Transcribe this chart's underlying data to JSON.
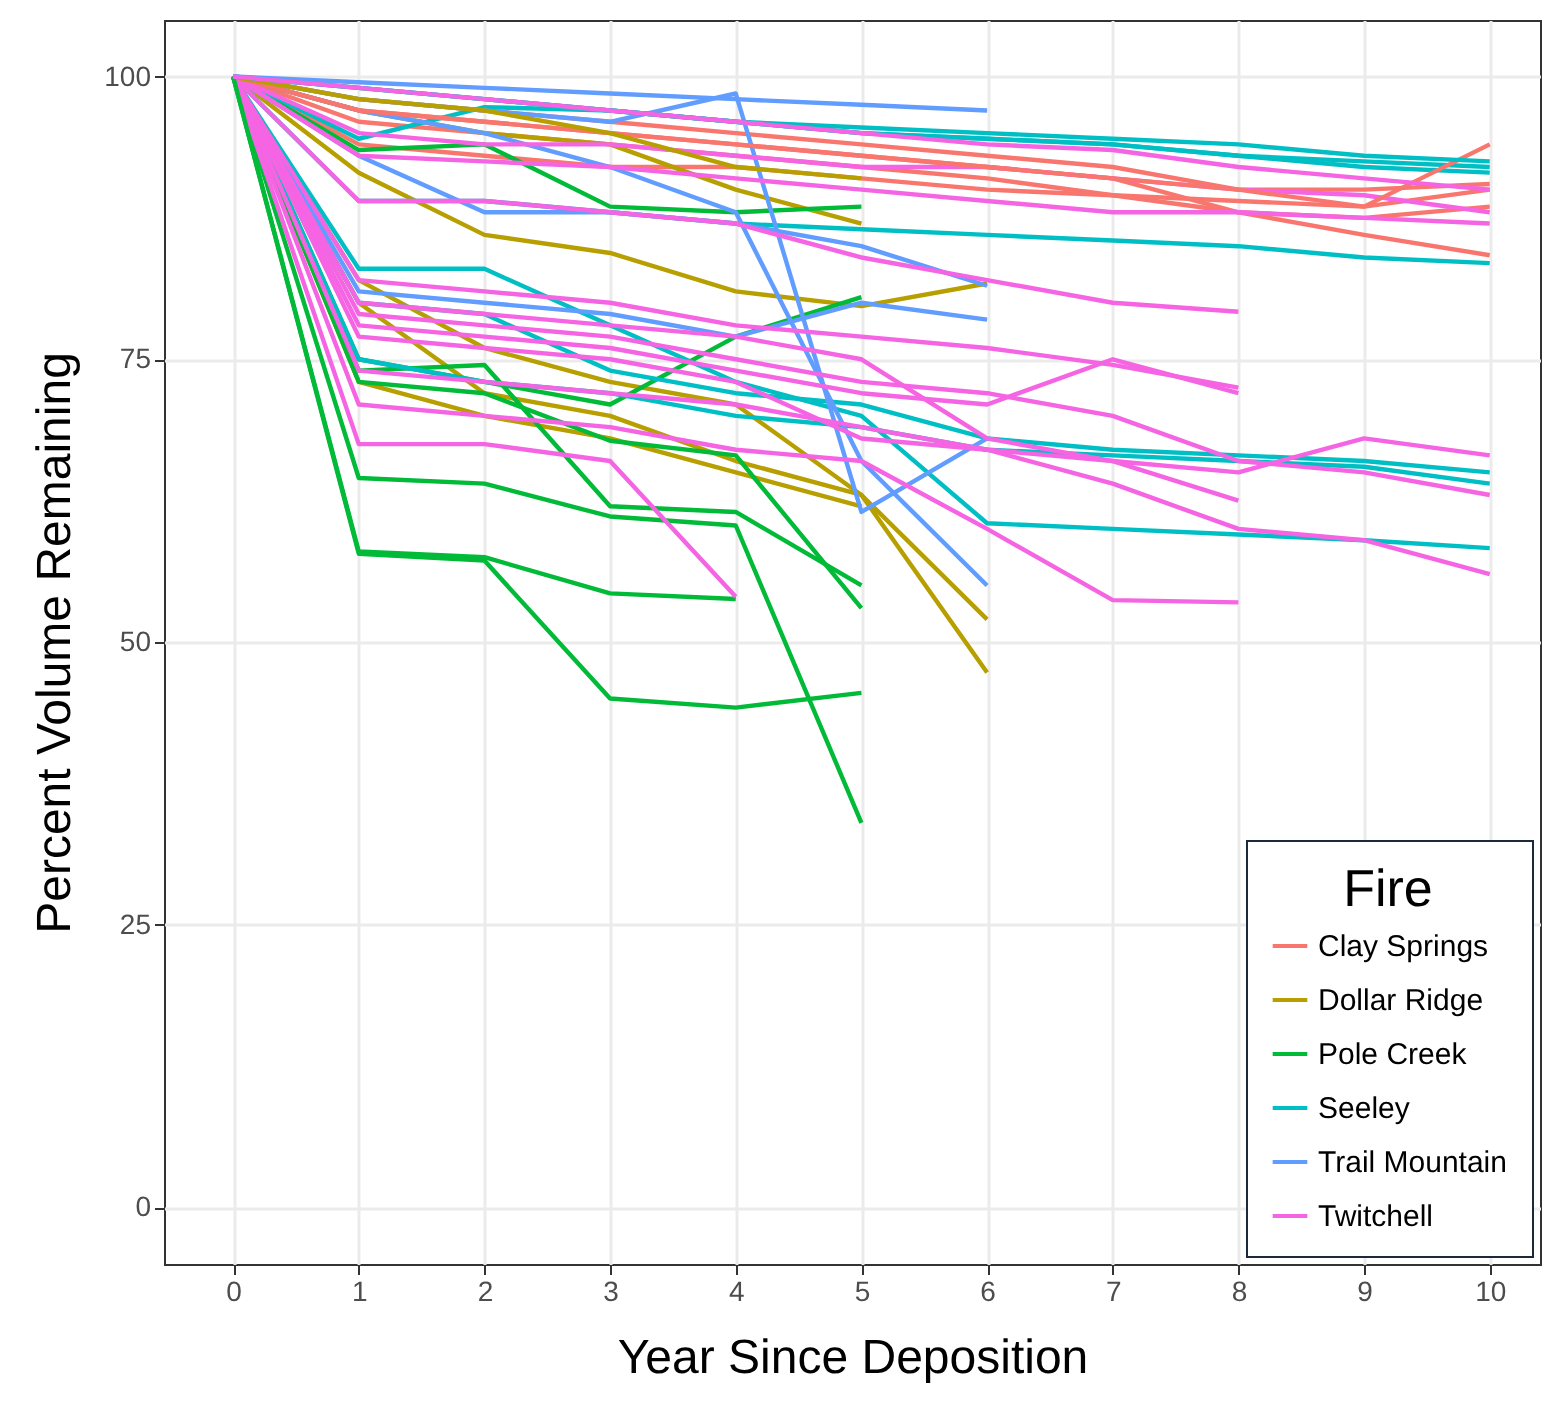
{
  "chart_data": {
    "type": "line",
    "xlabel": "Year Since Deposition",
    "ylabel": "Percent Volume Remaining",
    "legend_title": "Fire",
    "legend": "bottom right",
    "grid": true,
    "line_style": "solid",
    "x": [
      0,
      1,
      2,
      3,
      4,
      5,
      6,
      7,
      8,
      9,
      10
    ],
    "xlim": [
      -0.55,
      10.4
    ],
    "xticks": [
      0,
      1,
      2,
      3,
      4,
      5,
      6,
      7,
      8,
      9,
      10
    ],
    "ylim": [
      -5,
      105
    ],
    "yticks": [
      0,
      25,
      50,
      75,
      100
    ],
    "series": [
      {
        "name": "Clay Springs",
        "color": "#f8766d",
        "values": [
          100,
          97,
          96,
          95,
          94,
          93,
          92,
          91,
          90,
          88.5,
          94
        ]
      },
      {
        "color": "#f8766d",
        "values": [
          100,
          96,
          95,
          94,
          93,
          92,
          91,
          89.5,
          88,
          86,
          84.2
        ]
      },
      {
        "color": "#f8766d",
        "values": [
          100,
          98,
          97,
          96,
          95,
          94,
          93,
          92,
          90,
          90,
          90.5
        ]
      },
      {
        "color": "#f8766d",
        "values": [
          100,
          94,
          93,
          92,
          92,
          91,
          90,
          89.5,
          89,
          88.5,
          90
        ]
      },
      {
        "color": "#f8766d",
        "values": [
          100,
          97,
          96,
          95,
          94,
          93,
          92,
          91,
          88,
          87.5,
          88.5
        ]
      },
      {
        "name": "Dollar Ridge",
        "color": "#b79f00",
        "values": [
          100,
          98,
          97,
          95,
          92,
          91,
          null,
          null,
          null,
          null,
          null
        ]
      },
      {
        "color": "#b79f00",
        "values": [
          100,
          91.5,
          86,
          84.4,
          81,
          79.7,
          81.7,
          null,
          null,
          null,
          null
        ]
      },
      {
        "color": "#b79f00",
        "values": [
          100,
          82,
          76,
          73,
          71,
          63,
          52,
          null,
          null,
          null,
          null
        ]
      },
      {
        "color": "#b79f00",
        "values": [
          100,
          80,
          72,
          70,
          66,
          63,
          47.3,
          null,
          null,
          null,
          null
        ]
      },
      {
        "color": "#b79f00",
        "values": [
          100,
          73,
          70,
          68,
          65,
          62,
          null,
          null,
          null,
          null,
          null
        ]
      },
      {
        "color": "#b79f00",
        "values": [
          100,
          97,
          95,
          94,
          90,
          87,
          null,
          null,
          null,
          null,
          null
        ]
      },
      {
        "name": "Pole Creek",
        "color": "#00ba38",
        "values": [
          100,
          57.8,
          57.2,
          45,
          44.2,
          45.5,
          null,
          null,
          null,
          null,
          null
        ]
      },
      {
        "color": "#00ba38",
        "values": [
          100,
          58,
          57.5,
          54.3,
          53.8,
          null,
          null,
          null,
          null,
          null,
          null
        ]
      },
      {
        "color": "#00ba38",
        "values": [
          100,
          64.5,
          64,
          61.1,
          60.3,
          34,
          null,
          null,
          null,
          null,
          null
        ]
      },
      {
        "color": "#00ba38",
        "values": [
          100,
          74,
          74.5,
          62,
          61.5,
          55,
          null,
          null,
          null,
          null,
          null
        ]
      },
      {
        "color": "#00ba38",
        "values": [
          100,
          73,
          72,
          67.8,
          66.5,
          53,
          null,
          null,
          null,
          null,
          null
        ]
      },
      {
        "color": "#00ba38",
        "values": [
          100,
          93.5,
          94,
          88.5,
          88,
          88.5,
          null,
          null,
          null,
          null,
          null
        ]
      },
      {
        "color": "#00ba38",
        "values": [
          100,
          75,
          73,
          71,
          77,
          80.5,
          null,
          null,
          null,
          null,
          null
        ]
      },
      {
        "name": "Seeley",
        "color": "#00bfc4",
        "values": [
          100,
          99,
          98,
          97,
          96,
          95.5,
          95,
          94.5,
          94,
          93,
          92.5
        ]
      },
      {
        "color": "#00bfc4",
        "values": [
          100,
          99,
          98,
          97,
          96,
          95,
          94.5,
          94,
          93,
          92,
          91.5
        ]
      },
      {
        "color": "#00bfc4",
        "values": [
          100,
          89,
          89,
          88,
          87,
          86.5,
          86,
          85.5,
          85,
          84,
          83.5
        ]
      },
      {
        "color": "#00bfc4",
        "values": [
          100,
          83,
          83,
          78,
          73,
          70,
          60.5,
          60,
          59.5,
          59,
          58.3
        ]
      },
      {
        "color": "#00bfc4",
        "values": [
          100,
          80,
          79,
          74,
          72,
          71,
          68,
          67,
          66.5,
          66,
          65
        ]
      },
      {
        "color": "#00bfc4",
        "values": [
          100,
          75,
          73,
          72,
          70,
          69,
          67,
          66.5,
          66,
          65.5,
          64
        ]
      },
      {
        "color": "#00bfc4",
        "values": [
          100,
          94.5,
          97.3,
          97,
          96,
          95,
          94.5,
          94,
          93,
          92.5,
          92
        ]
      },
      {
        "name": "Trail Mountain",
        "color": "#619cff",
        "values": [
          100,
          99.5,
          99,
          98.5,
          98,
          97.5,
          97,
          null,
          null,
          null,
          null
        ]
      },
      {
        "color": "#619cff",
        "values": [
          100,
          97,
          95,
          92,
          88,
          66,
          55,
          null,
          null,
          null,
          null
        ]
      },
      {
        "color": "#619cff",
        "values": [
          100,
          98,
          97,
          96,
          98.5,
          61.5,
          68,
          null,
          null,
          null,
          null
        ]
      },
      {
        "color": "#619cff",
        "values": [
          100,
          81,
          80,
          79,
          77,
          80,
          78.5,
          null,
          null,
          null,
          null
        ]
      },
      {
        "color": "#619cff",
        "values": [
          100,
          93,
          88,
          88,
          87,
          85,
          81.5,
          null,
          null,
          null,
          null
        ]
      },
      {
        "name": "Twitchell",
        "color": "#f564e3",
        "values": [
          100,
          99,
          98,
          97,
          96,
          95,
          94,
          93.5,
          92,
          91,
          90
        ]
      },
      {
        "color": "#f564e3",
        "values": [
          100,
          93,
          92.5,
          92,
          91,
          90,
          89,
          88,
          88,
          87.5,
          87
        ]
      },
      {
        "color": "#f564e3",
        "values": [
          100,
          89,
          89,
          88,
          87,
          84,
          82,
          80,
          79.2,
          null,
          null
        ]
      },
      {
        "color": "#f564e3",
        "values": [
          100,
          79,
          78,
          77,
          75,
          73,
          72,
          70,
          66,
          65,
          63
        ]
      },
      {
        "color": "#f564e3",
        "values": [
          100,
          78,
          77,
          76,
          74,
          72,
          71,
          75,
          72,
          null,
          null
        ]
      },
      {
        "color": "#f564e3",
        "values": [
          100,
          77,
          76,
          75,
          73,
          68,
          67,
          66,
          65,
          68,
          66.5
        ]
      },
      {
        "color": "#f564e3",
        "values": [
          100,
          71,
          70,
          69,
          67,
          66,
          60,
          53.7,
          53.5,
          null,
          null
        ]
      },
      {
        "color": "#f564e3",
        "values": [
          100,
          67.5,
          67.5,
          66,
          54,
          null,
          null,
          null,
          null,
          null,
          null
        ]
      },
      {
        "color": "#f564e3",
        "values": [
          100,
          80,
          79,
          78,
          77,
          75,
          68,
          66,
          62.5,
          null,
          null
        ]
      },
      {
        "color": "#f564e3",
        "values": [
          100,
          74,
          73,
          72,
          71,
          69,
          67,
          64,
          60,
          59,
          56
        ]
      },
      {
        "color": "#f564e3",
        "values": [
          100,
          82,
          81,
          80,
          78,
          77,
          76,
          74.5,
          72.5,
          null,
          null
        ]
      },
      {
        "color": "#f564e3",
        "values": [
          100,
          95,
          94,
          94,
          93,
          92,
          92,
          91,
          90,
          89.5,
          88
        ]
      }
    ]
  }
}
